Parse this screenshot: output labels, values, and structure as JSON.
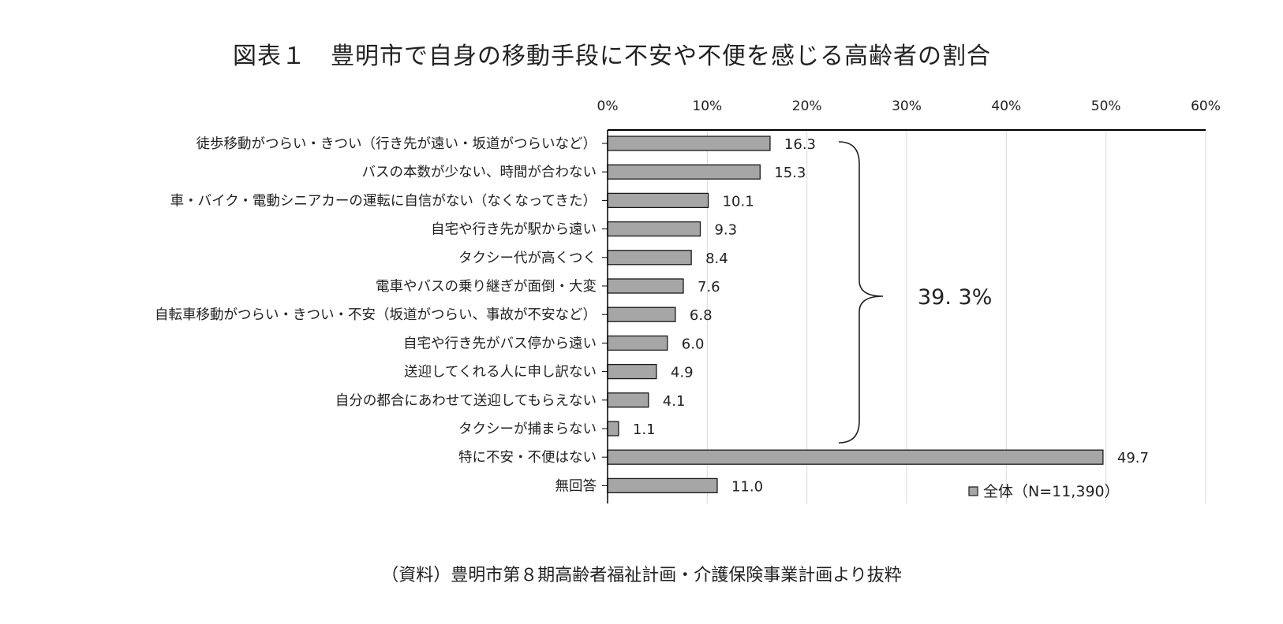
{
  "title": "図表１　豊明市で自身の移動手段に不安や不便を感じる高齢者の割合",
  "source": "（資料）豊明市第８期高齢者福祉計画・介護保険事業計画より抜粋",
  "bracket_label": "39. 3%",
  "chart_data": {
    "type": "bar",
    "orientation": "horizontal",
    "title": "図表１　豊明市で自身の移動手段に不安や不便を感じる高齢者の割合",
    "xlabel": "",
    "ylabel": "",
    "xlim": [
      0,
      60
    ],
    "x_ticks": [
      0,
      10,
      20,
      30,
      40,
      50,
      60
    ],
    "x_tick_labels": [
      "0%",
      "10%",
      "20%",
      "30%",
      "40%",
      "50%",
      "60%"
    ],
    "grid": true,
    "legend_position": "bottom-right",
    "categories": [
      "徒歩移動がつらい・きつい（行き先が遠い・坂道がつらいなど）",
      "バスの本数が少ない、時間が合わない",
      "車・バイク・電動シニアカーの運転に自信がない（なくなってきた）",
      "自宅や行き先が駅から遠い",
      "タクシー代が高くつく",
      "電車やバスの乗り継ぎが面倒・大変",
      "自転車移動がつらい・きつい・不安（坂道がつらい、事故が不安など）",
      "自宅や行き先がバス停から遠い",
      "送迎してくれる人に申し訳ない",
      "自分の都合にあわせて送迎してもらえない",
      "タクシーが捕まらない",
      "特に不安・不便はない",
      "無回答"
    ],
    "series": [
      {
        "name": "全体（N=11,390）",
        "values": [
          16.3,
          15.3,
          10.1,
          9.3,
          8.4,
          7.6,
          6.8,
          6.0,
          4.9,
          4.1,
          1.1,
          49.7,
          11.0
        ],
        "value_labels": [
          "16.3",
          "15.3",
          "10.1",
          "9.3",
          "8.4",
          "7.6",
          "6.8",
          "6.0",
          "4.9",
          "4.1",
          "1.1",
          "49.7",
          "11.0"
        ]
      }
    ],
    "colors": {
      "bar_fill": "#a6a6a6",
      "bar_stroke": "#1a1a1a",
      "grid": "#d9d9d9",
      "axis": "#000000"
    },
    "annotation": {
      "text": "39. 3%",
      "spans_categories": [
        0,
        10
      ]
    }
  }
}
